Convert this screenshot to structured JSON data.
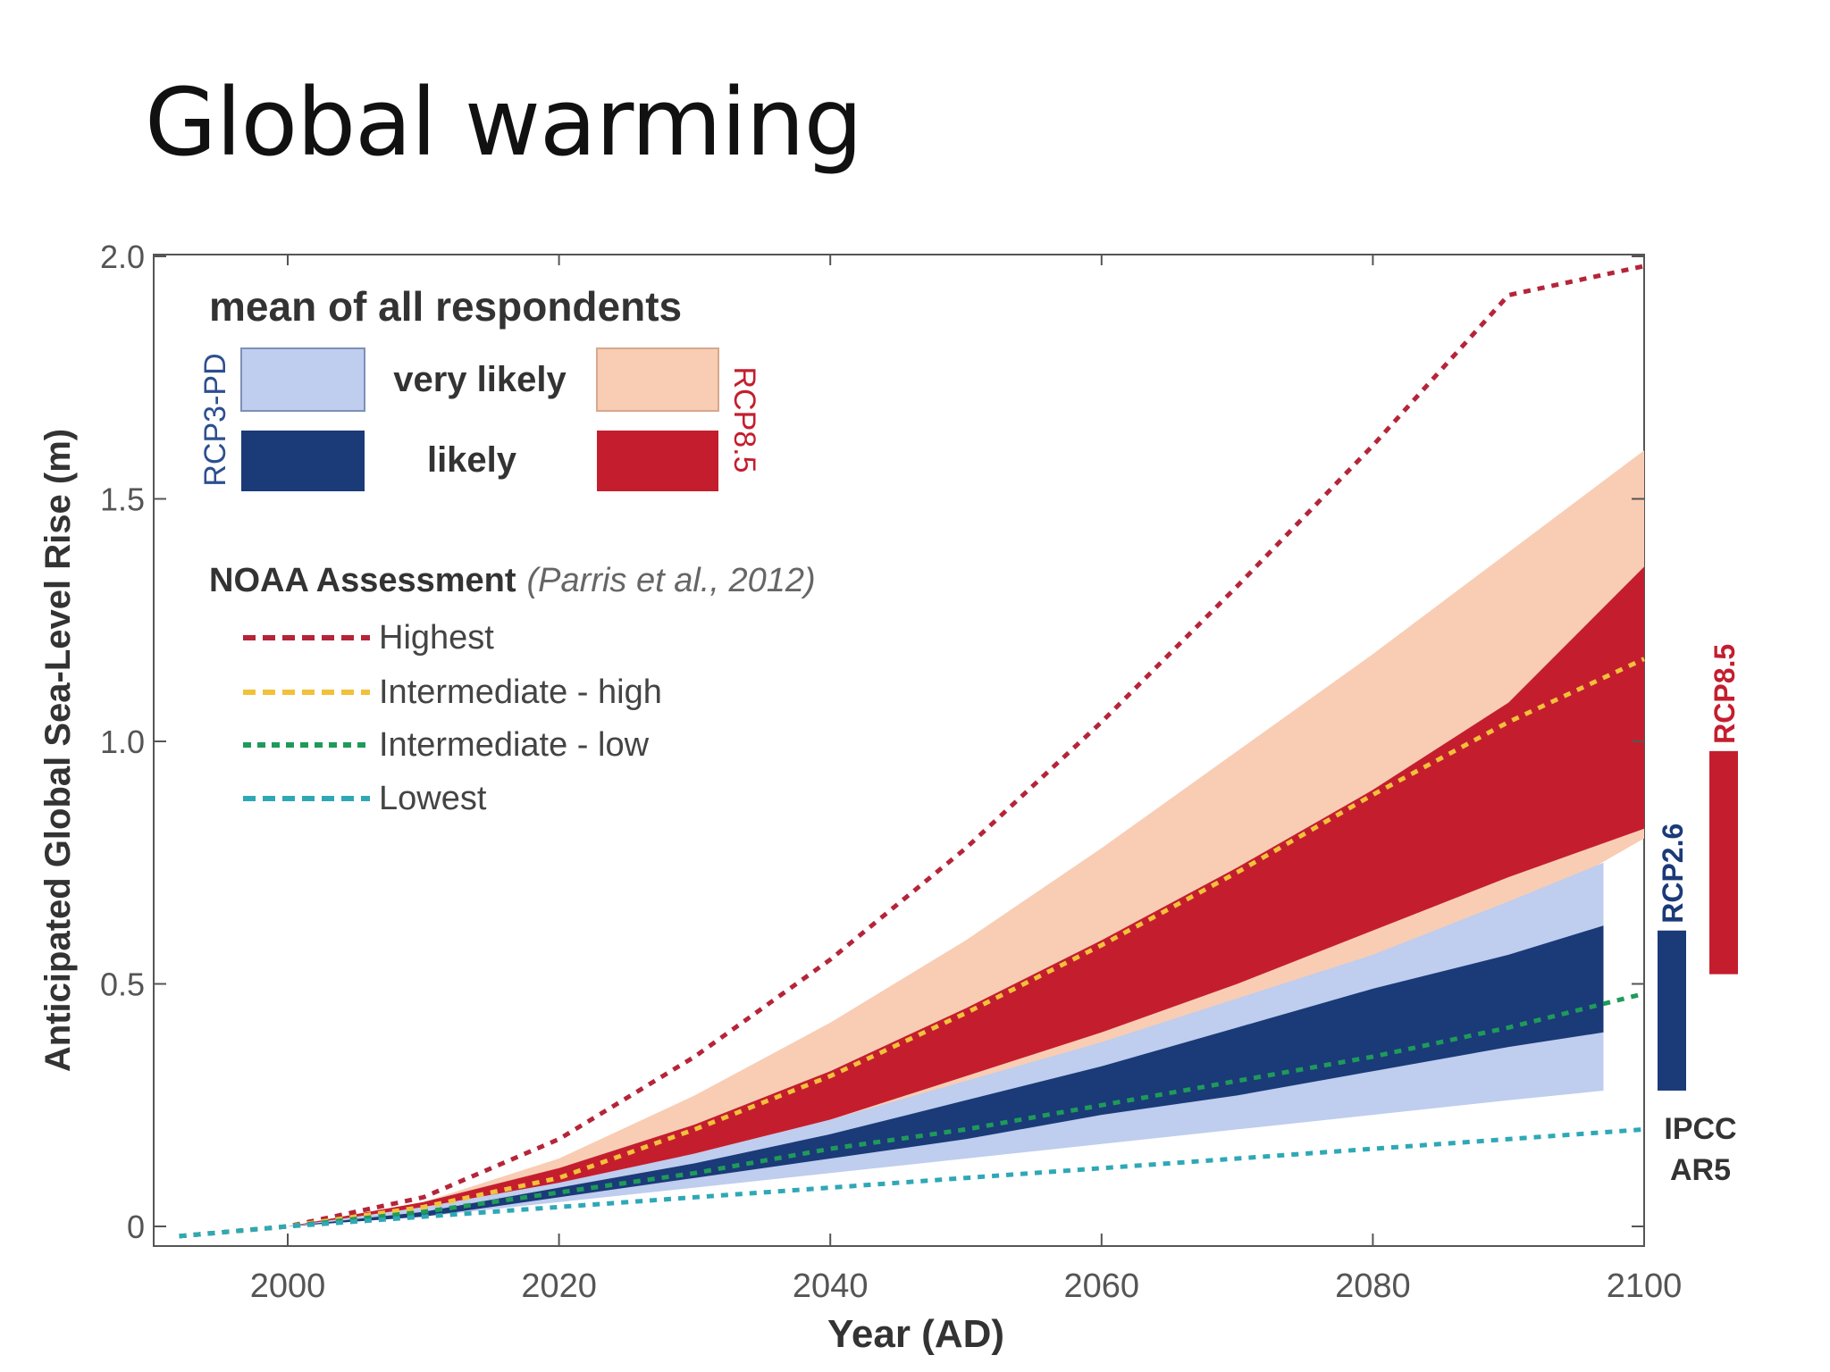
{
  "slide": {
    "title": "Global warming"
  },
  "chart_data": {
    "type": "area",
    "xlabel": "Year (AD)",
    "ylabel": "Anticipated Global Sea-Level Rise (m)",
    "xlim": [
      1990,
      2100
    ],
    "ylim": [
      -0.05,
      2.0
    ],
    "x_ticks": [
      2000,
      2020,
      2040,
      2060,
      2080,
      2100
    ],
    "y_ticks": [
      {
        "value": 0,
        "label": "0"
      },
      {
        "value": 0.5,
        "label": "0.5"
      },
      {
        "value": 1.0,
        "label": "1.0"
      },
      {
        "value": 1.5,
        "label": "1.5"
      },
      {
        "value": 2.0,
        "label": "2.0"
      }
    ],
    "legend_experts": {
      "title": "mean of all respondents",
      "very_likely_label": "very likely",
      "likely_label": "likely",
      "rcp3_label": "RCP3-PD",
      "rcp85_label": "RCP8.5"
    },
    "legend_noaa": {
      "title": "NOAA Assessment",
      "citation": "(Parris et al., 2012)"
    },
    "colors": {
      "rcp85_very_likely": "#f8cdb4",
      "rcp85_likely": "#c41e2e",
      "rcp3_very_likely": "#bfcdee",
      "rcp3_likely": "#1b3a78",
      "highest": "#b5253a",
      "intermediate_high": "#f2c13b",
      "intermediate_low": "#1f9a5a",
      "lowest": "#2fa8b6"
    },
    "bands": [
      {
        "name": "RCP8.5 very likely",
        "x": [
          2000,
          2010,
          2020,
          2030,
          2040,
          2050,
          2060,
          2070,
          2080,
          2090,
          2100
        ],
        "lower": [
          0.0,
          0.03,
          0.07,
          0.12,
          0.18,
          0.25,
          0.33,
          0.42,
          0.52,
          0.64,
          0.8
        ],
        "upper": [
          0.0,
          0.05,
          0.14,
          0.27,
          0.42,
          0.59,
          0.78,
          0.98,
          1.18,
          1.39,
          1.6
        ]
      },
      {
        "name": "RCP8.5 likely",
        "x": [
          2000,
          2010,
          2020,
          2030,
          2040,
          2050,
          2060,
          2070,
          2080,
          2090,
          2100
        ],
        "lower": [
          0.0,
          0.03,
          0.08,
          0.15,
          0.22,
          0.31,
          0.4,
          0.5,
          0.61,
          0.72,
          0.82
        ],
        "upper": [
          0.0,
          0.05,
          0.12,
          0.21,
          0.32,
          0.45,
          0.59,
          0.74,
          0.9,
          1.08,
          1.36
        ]
      },
      {
        "name": "RCP3-PD very likely",
        "x": [
          2000,
          2010,
          2020,
          2030,
          2040,
          2050,
          2060,
          2070,
          2080,
          2090,
          2097
        ],
        "lower": [
          0.0,
          0.02,
          0.05,
          0.08,
          0.11,
          0.14,
          0.17,
          0.2,
          0.23,
          0.26,
          0.28
        ],
        "upper": [
          0.0,
          0.04,
          0.09,
          0.15,
          0.22,
          0.3,
          0.38,
          0.47,
          0.56,
          0.67,
          0.75
        ]
      },
      {
        "name": "RCP3-PD likely",
        "x": [
          2000,
          2010,
          2020,
          2030,
          2040,
          2050,
          2060,
          2070,
          2080,
          2090,
          2097
        ],
        "lower": [
          0.0,
          0.02,
          0.06,
          0.1,
          0.14,
          0.18,
          0.23,
          0.27,
          0.32,
          0.37,
          0.4
        ],
        "upper": [
          0.0,
          0.03,
          0.08,
          0.13,
          0.19,
          0.26,
          0.33,
          0.41,
          0.49,
          0.56,
          0.62
        ]
      }
    ],
    "series": [
      {
        "name": "Highest",
        "x": [
          1992,
          2000,
          2010,
          2020,
          2030,
          2040,
          2050,
          2060,
          2070,
          2080,
          2090,
          2100
        ],
        "values": [
          -0.02,
          0.0,
          0.06,
          0.18,
          0.35,
          0.55,
          0.78,
          1.04,
          1.32,
          1.61,
          1.92,
          1.98
        ]
      },
      {
        "name": "Intermediate - high",
        "x": [
          1992,
          2000,
          2010,
          2020,
          2030,
          2040,
          2050,
          2060,
          2070,
          2080,
          2090,
          2100
        ],
        "values": [
          -0.02,
          0.0,
          0.04,
          0.1,
          0.2,
          0.31,
          0.44,
          0.58,
          0.73,
          0.89,
          1.04,
          1.17
        ]
      },
      {
        "name": "Intermediate - low",
        "x": [
          1992,
          2000,
          2010,
          2020,
          2030,
          2040,
          2050,
          2060,
          2070,
          2080,
          2090,
          2100
        ],
        "values": [
          -0.02,
          0.0,
          0.03,
          0.07,
          0.11,
          0.16,
          0.2,
          0.25,
          0.3,
          0.35,
          0.41,
          0.48
        ]
      },
      {
        "name": "Lowest",
        "x": [
          1992,
          2000,
          2010,
          2020,
          2030,
          2040,
          2050,
          2060,
          2070,
          2080,
          2090,
          2100
        ],
        "values": [
          -0.02,
          0.0,
          0.02,
          0.04,
          0.06,
          0.08,
          0.1,
          0.12,
          0.14,
          0.16,
          0.18,
          0.2
        ]
      }
    ],
    "ipcc_ar5": {
      "label_line1": "IPCC",
      "label_line2": "AR5",
      "ranges": [
        {
          "name": "RCP2.6",
          "lower": 0.28,
          "upper": 0.61
        },
        {
          "name": "RCP8.5",
          "lower": 0.52,
          "upper": 0.98
        }
      ]
    }
  }
}
